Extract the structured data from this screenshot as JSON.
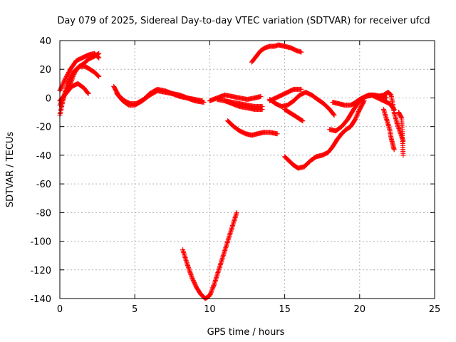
{
  "chart_data": {
    "type": "scatter",
    "title": "Day 079 of 2025, Sidereal Day-to-day VTEC variation (SDTVAR) for receiver ufcd",
    "xlabel": "GPS time / hours",
    "ylabel": "SDTVAR / TECUs",
    "xlim": [
      0,
      25
    ],
    "ylim": [
      -140,
      40
    ],
    "xticks": [
      0,
      5,
      10,
      15,
      20,
      25
    ],
    "yticks": [
      40,
      20,
      0,
      -20,
      -40,
      -60,
      -80,
      -100,
      -120,
      -140
    ],
    "grid": true,
    "marker": "+",
    "color": "#ff0000",
    "series": [
      {
        "x": [
          0.0,
          0.2,
          0.5,
          0.9,
          1.3,
          1.6,
          1.9,
          2.3,
          2.6
        ],
        "y": [
          -12,
          -2,
          10,
          18,
          22,
          24,
          27,
          29,
          31
        ]
      },
      {
        "x": [
          0.0,
          0.3,
          0.7,
          1.1,
          1.5,
          1.9,
          2.3,
          2.6
        ],
        "y": [
          5,
          12,
          20,
          26,
          28,
          30,
          31,
          28
        ]
      },
      {
        "x": [
          0.0,
          0.3,
          0.7,
          1.0,
          1.3,
          1.7,
          2.0,
          2.3,
          2.6
        ],
        "y": [
          -5,
          2,
          10,
          18,
          22,
          22,
          20,
          18,
          15
        ]
      },
      {
        "x": [
          0.0,
          0.4,
          0.8,
          1.2,
          1.6,
          1.9
        ],
        "y": [
          -2,
          3,
          8,
          10,
          7,
          3
        ]
      },
      {
        "x": [
          3.6,
          3.9,
          4.3,
          4.7,
          5.1,
          5.6,
          6.0,
          6.5,
          7.0,
          7.5,
          8.0,
          8.5,
          9.0,
          9.5
        ],
        "y": [
          8,
          2,
          -2,
          -4,
          -4,
          -1,
          3,
          6,
          5,
          3,
          1,
          0,
          -1,
          -2
        ]
      },
      {
        "x": [
          3.8,
          4.2,
          4.6,
          5.0,
          5.5,
          6.0,
          6.5,
          7.0,
          7.5,
          8.0,
          8.5,
          9.0,
          9.6
        ],
        "y": [
          3,
          -2,
          -5,
          -5,
          -2,
          2,
          5,
          4,
          3,
          2,
          0,
          -2,
          -3
        ]
      },
      {
        "x": [
          10.0,
          10.5,
          11.0,
          11.5,
          12.0,
          12.5,
          13.0,
          13.4
        ],
        "y": [
          -2,
          0,
          2,
          1,
          0,
          -1,
          0,
          1
        ]
      },
      {
        "x": [
          10.5,
          11.0,
          11.5,
          12.0,
          12.5,
          13.0,
          13.5
        ],
        "y": [
          -1,
          -2,
          -3,
          -4,
          -5,
          -6,
          -6
        ]
      },
      {
        "x": [
          11.0,
          11.5,
          12.0,
          12.5,
          13.0,
          13.5
        ],
        "y": [
          -2,
          -4,
          -6,
          -7,
          -8,
          -8
        ]
      },
      {
        "x": [
          11.2,
          11.6,
          12.0,
          12.4,
          12.8,
          13.2,
          13.6,
          14.0,
          14.5
        ],
        "y": [
          -16,
          -20,
          -23,
          -25,
          -26,
          -25,
          -24,
          -24,
          -25
        ]
      },
      {
        "x": [
          8.2,
          8.5,
          8.8,
          9.1,
          9.4,
          9.7,
          10.0,
          10.3,
          10.6,
          10.9,
          11.2,
          11.5,
          11.8
        ],
        "y": [
          -106,
          -116,
          -125,
          -132,
          -137,
          -140,
          -138,
          -130,
          -120,
          -110,
          -100,
          -90,
          -80
        ]
      },
      {
        "x": [
          12.8,
          13.1,
          13.4,
          13.7,
          14.0,
          14.3,
          14.6,
          15.0,
          15.4,
          15.8,
          16.1
        ],
        "y": [
          25,
          29,
          33,
          35,
          36,
          36,
          37,
          36,
          35,
          33,
          32
        ]
      },
      {
        "x": [
          14.0,
          14.4,
          14.8,
          15.2,
          15.6,
          16.0,
          16.4,
          16.8,
          17.2,
          17.6,
          18.0,
          18.3
        ],
        "y": [
          -1,
          -4,
          -6,
          -5,
          -2,
          2,
          4,
          2,
          -1,
          -4,
          -8,
          -12
        ]
      },
      {
        "x": [
          14.0,
          14.4,
          14.8,
          15.2,
          15.6,
          16.1
        ],
        "y": [
          -2,
          0,
          2,
          4,
          6,
          6
        ]
      },
      {
        "x": [
          15.0,
          15.3,
          15.6,
          15.9,
          16.2
        ],
        "y": [
          -8,
          -10,
          -12,
          -14,
          -16
        ]
      },
      {
        "x": [
          15.0,
          15.3,
          15.6,
          15.9,
          16.3,
          16.7,
          17.1,
          17.5,
          17.9,
          18.2,
          18.5,
          18.8,
          19.1,
          19.4,
          19.7,
          20.0,
          20.3
        ],
        "y": [
          -41,
          -44,
          -47,
          -49,
          -48,
          -44,
          -41,
          -40,
          -38,
          -34,
          -29,
          -25,
          -22,
          -20,
          -15,
          -8,
          -2
        ]
      },
      {
        "x": [
          18.0,
          18.4,
          18.8,
          19.2,
          19.6,
          20.0,
          20.4,
          20.8,
          21.2,
          21.6,
          22.0,
          22.3
        ],
        "y": [
          -22,
          -23,
          -20,
          -15,
          -8,
          -2,
          1,
          2,
          0,
          -2,
          -4,
          -8
        ]
      },
      {
        "x": [
          18.2,
          18.6,
          19.0,
          19.4,
          19.8,
          20.2,
          20.6,
          21.0,
          21.4,
          21.8
        ],
        "y": [
          -3,
          -4,
          -5,
          -5,
          -3,
          0,
          2,
          2,
          1,
          0
        ]
      },
      {
        "x": [
          19.6,
          20.0,
          20.4,
          20.8,
          21.2,
          21.6,
          21.9,
          22.1,
          22.3,
          22.5,
          22.7,
          22.9
        ],
        "y": [
          -4,
          -1,
          1,
          2,
          1,
          2,
          4,
          2,
          -10,
          -18,
          -24,
          -30
        ]
      },
      {
        "x": [
          21.6,
          21.8,
          22.0,
          22.1,
          22.2,
          22.3
        ],
        "y": [
          -8,
          -15,
          -22,
          -28,
          -32,
          -36
        ]
      },
      {
        "x": [
          22.6,
          22.7,
          22.8,
          22.9
        ],
        "y": [
          -10,
          -12,
          -14,
          -40
        ]
      }
    ]
  }
}
